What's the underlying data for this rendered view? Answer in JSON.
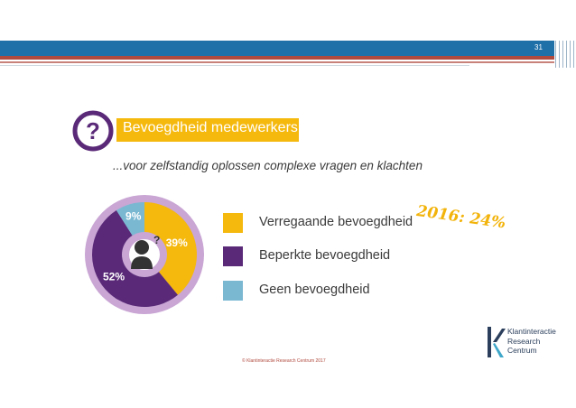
{
  "header": {
    "page_number": "31"
  },
  "slide": {
    "title": "Bevoegdheid medewerkers",
    "subtitle": "...voor zelfstandig oplossen complexe vragen en klachten",
    "note": "2016: 24%"
  },
  "chart_data": {
    "type": "pie",
    "categories": [
      "Verregaande bevoegdheid",
      "Beperkte bevoegdheid",
      "Geen bevoegdheid"
    ],
    "values": [
      39,
      52,
      9
    ],
    "value_labels": [
      "39%",
      "52%",
      "9%"
    ],
    "colors": [
      "#f5b80d",
      "#5a2a78",
      "#7ab8d2"
    ],
    "legend_placement": "right"
  },
  "logo": {
    "line1": "Klantinteractie",
    "line2": "Research",
    "line3": "Centrum"
  },
  "footer": {
    "text": "© Klantinteractie Research Centrum 2017"
  },
  "colors": {
    "accent": "#f5b80d",
    "header_blue": "#1f6fa8",
    "header_red": "#b04a3f"
  }
}
